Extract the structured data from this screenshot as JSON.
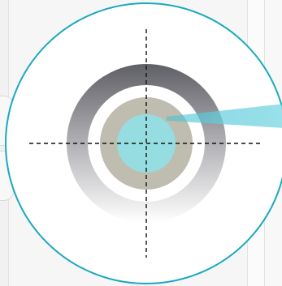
{
  "diagram": {
    "elements": [
      "outer-circle",
      "gray-gradient-ring",
      "white-gap-ring",
      "tan-ring",
      "cyan-center",
      "crosshair-horizontal",
      "crosshair-vertical",
      "cyan-beam"
    ]
  },
  "colors": {
    "outer_stroke": "#1aa9bd",
    "ring_dark": "#5f5f66",
    "ring_light": "#ffffff",
    "tan": "#bfbcb0",
    "cyan": "#96dde1",
    "beam": "#3fc2d4",
    "crosshair": "#111111",
    "background": "#ffffff"
  }
}
